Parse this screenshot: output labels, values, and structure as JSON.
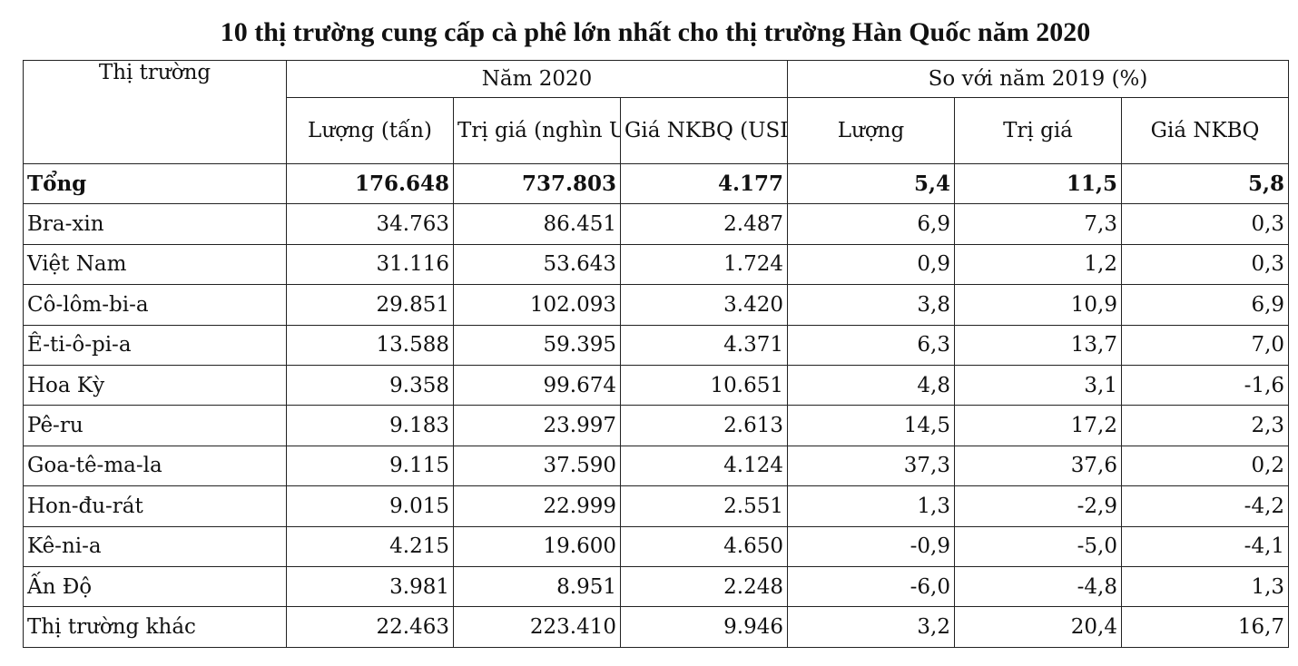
{
  "title": "10 thị trường cung cấp cà phê lớn nhất cho thị trường Hàn Quốc năm 2020",
  "headers": {
    "market": "Thị trường",
    "group_2020": "Năm 2020",
    "group_vs2019": "So với năm 2019 (%)",
    "qty_tons": "Lượng (tấn)",
    "value_kusd": "Trị giá (nghìn USD)",
    "avg_price": "Giá NKBQ (USD/tấn)",
    "qty": "Lượng",
    "value": "Trị giá",
    "price": "Giá NKBQ"
  },
  "total": {
    "market": "Tổng",
    "qty": "176.648",
    "value": "737.803",
    "price": "4.177",
    "qty_pct": "5,4",
    "value_pct": "11,5",
    "price_pct": "5,8"
  },
  "rows": [
    {
      "market": "Bra-xin",
      "qty": "34.763",
      "value": "86.451",
      "price": "2.487",
      "qty_pct": "6,9",
      "value_pct": "7,3",
      "price_pct": "0,3"
    },
    {
      "market": "Việt Nam",
      "qty": "31.116",
      "value": "53.643",
      "price": "1.724",
      "qty_pct": "0,9",
      "value_pct": "1,2",
      "price_pct": "0,3"
    },
    {
      "market": "Cô-lôm-bi-a",
      "qty": "29.851",
      "value": "102.093",
      "price": "3.420",
      "qty_pct": "3,8",
      "value_pct": "10,9",
      "price_pct": "6,9"
    },
    {
      "market": "Ê-ti-ô-pi-a",
      "qty": "13.588",
      "value": "59.395",
      "price": "4.371",
      "qty_pct": "6,3",
      "value_pct": "13,7",
      "price_pct": "7,0"
    },
    {
      "market": "Hoa Kỳ",
      "qty": "9.358",
      "value": "99.674",
      "price": "10.651",
      "qty_pct": "4,8",
      "value_pct": "3,1",
      "price_pct": "-1,6"
    },
    {
      "market": "Pê-ru",
      "qty": "9.183",
      "value": "23.997",
      "price": "2.613",
      "qty_pct": "14,5",
      "value_pct": "17,2",
      "price_pct": "2,3"
    },
    {
      "market": "Goa-tê-ma-la",
      "qty": "9.115",
      "value": "37.590",
      "price": "4.124",
      "qty_pct": "37,3",
      "value_pct": "37,6",
      "price_pct": "0,2"
    },
    {
      "market": "Hon-đu-rát",
      "qty": "9.015",
      "value": "22.999",
      "price": "2.551",
      "qty_pct": "1,3",
      "value_pct": "-2,9",
      "price_pct": "-4,2"
    },
    {
      "market": "Kê-ni-a",
      "qty": "4.215",
      "value": "19.600",
      "price": "4.650",
      "qty_pct": "-0,9",
      "value_pct": "-5,0",
      "price_pct": "-4,1"
    },
    {
      "market": "Ấn Độ",
      "qty": "3.981",
      "value": "8.951",
      "price": "2.248",
      "qty_pct": "-6,0",
      "value_pct": "-4,8",
      "price_pct": "1,3"
    },
    {
      "market": "Thị trường khác",
      "qty": "22.463",
      "value": "223.410",
      "price": "9.946",
      "qty_pct": "3,2",
      "value_pct": "20,4",
      "price_pct": "16,7"
    }
  ]
}
